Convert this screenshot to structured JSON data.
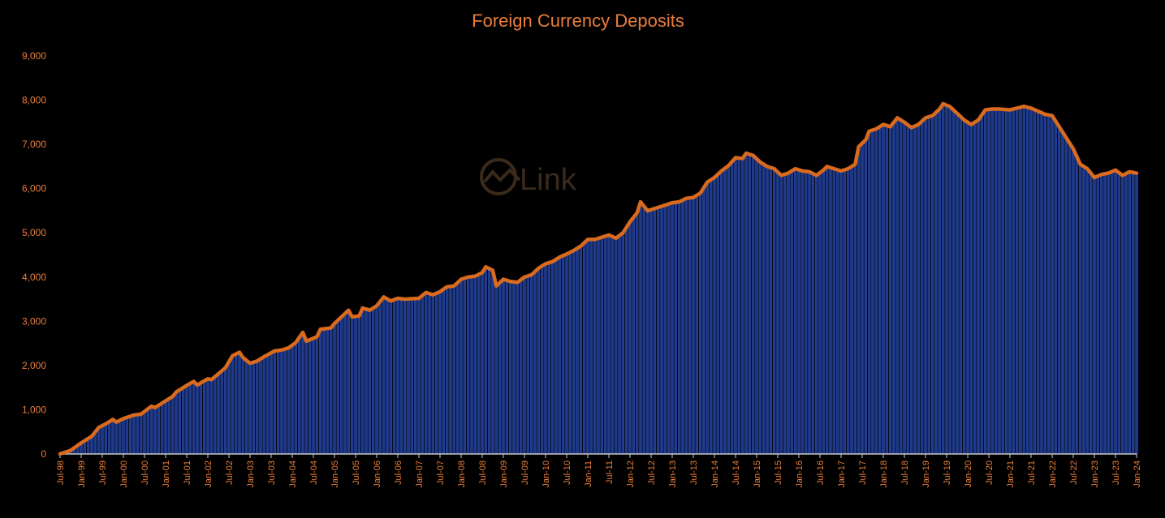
{
  "chart_data": {
    "type": "bar",
    "title": "Foreign Currency Deposits",
    "xlabel": "",
    "ylabel": "",
    "ylim": [
      0,
      9000
    ],
    "yticks": [
      0,
      1000,
      2000,
      3000,
      4000,
      5000,
      6000,
      7000,
      8000,
      9000
    ],
    "ytick_labels": [
      "0",
      "1,000",
      "2,000",
      "3,000",
      "4,000",
      "5,000",
      "6,000",
      "7,000",
      "8,000",
      "9,000"
    ],
    "x_start": "1998-07",
    "x_end": "2024-01",
    "x_tick_labels": [
      "Jul-98",
      "Jan-99",
      "Jul-99",
      "Jan-00",
      "Jul-00",
      "Jan-01",
      "Jul-01",
      "Jan-02",
      "Jul-02",
      "Jan-03",
      "Jul-03",
      "Jan-04",
      "Jul-04",
      "Jan-05",
      "Jul-05",
      "Jan-06",
      "Jul-06",
      "Jan-07",
      "Jul-07",
      "Jan-08",
      "Jul-08",
      "Jan-09",
      "Jul-09",
      "Jan-10",
      "Jul-10",
      "Jan-11",
      "Jul-11",
      "Jan-12",
      "Jul-12",
      "Jan-13",
      "Jul-13",
      "Jan-14",
      "Jul-14",
      "Jan-15",
      "Jul-15",
      "Jan-16",
      "Jul-16",
      "Jan-17",
      "Jul-17",
      "Jan-18",
      "Jul-18",
      "Jan-19",
      "Jul-19",
      "Jan-20",
      "Jul-20",
      "Jan-21",
      "Jul-21",
      "Jan-22",
      "Jul-22",
      "Jan-23",
      "Jul-23",
      "Jan-24"
    ],
    "x_tick_values": [
      "1998-07",
      "1999-01",
      "1999-07",
      "2000-01",
      "2000-07",
      "2001-01",
      "2001-07",
      "2002-01",
      "2002-07",
      "2003-01",
      "2003-07",
      "2004-01",
      "2004-07",
      "2005-01",
      "2005-07",
      "2006-01",
      "2006-07",
      "2007-01",
      "2007-07",
      "2008-01",
      "2008-07",
      "2009-01",
      "2009-07",
      "2010-01",
      "2010-07",
      "2011-01",
      "2011-07",
      "2012-01",
      "2012-07",
      "2013-01",
      "2013-07",
      "2014-01",
      "2014-07",
      "2015-01",
      "2015-07",
      "2016-01",
      "2016-07",
      "2017-01",
      "2017-07",
      "2018-01",
      "2018-07",
      "2019-01",
      "2019-07",
      "2020-01",
      "2020-07",
      "2021-01",
      "2021-07",
      "2022-01",
      "2022-07",
      "2023-01",
      "2023-07",
      "2024-01"
    ],
    "series_points": [
      [
        "1998-07",
        0
      ],
      [
        "1998-10",
        80
      ],
      [
        "1999-01",
        250
      ],
      [
        "1999-04",
        400
      ],
      [
        "1999-06",
        600
      ],
      [
        "1999-08",
        680
      ],
      [
        "1999-10",
        780
      ],
      [
        "1999-11",
        720
      ],
      [
        "2000-01",
        800
      ],
      [
        "2000-04",
        880
      ],
      [
        "2000-06",
        900
      ],
      [
        "2000-09",
        1080
      ],
      [
        "2000-10",
        1050
      ],
      [
        "2001-01",
        1200
      ],
      [
        "2001-03",
        1300
      ],
      [
        "2001-04",
        1400
      ],
      [
        "2001-07",
        1550
      ],
      [
        "2001-09",
        1640
      ],
      [
        "2001-10",
        1560
      ],
      [
        "2002-01",
        1700
      ],
      [
        "2002-02",
        1680
      ],
      [
        "2002-05",
        1880
      ],
      [
        "2002-06",
        1950
      ],
      [
        "2002-08",
        2220
      ],
      [
        "2002-10",
        2300
      ],
      [
        "2002-11",
        2180
      ],
      [
        "2003-01",
        2050
      ],
      [
        "2003-03",
        2100
      ],
      [
        "2003-05",
        2200
      ],
      [
        "2003-08",
        2330
      ],
      [
        "2003-10",
        2350
      ],
      [
        "2003-12",
        2400
      ],
      [
        "2004-02",
        2520
      ],
      [
        "2004-04",
        2750
      ],
      [
        "2004-05",
        2550
      ],
      [
        "2004-08",
        2650
      ],
      [
        "2004-09",
        2820
      ],
      [
        "2004-12",
        2850
      ],
      [
        "2005-01",
        2950
      ],
      [
        "2005-03",
        3100
      ],
      [
        "2005-05",
        3250
      ],
      [
        "2005-06",
        3100
      ],
      [
        "2005-08",
        3120
      ],
      [
        "2005-09",
        3300
      ],
      [
        "2005-11",
        3250
      ],
      [
        "2006-01",
        3350
      ],
      [
        "2006-03",
        3550
      ],
      [
        "2006-05",
        3460
      ],
      [
        "2006-07",
        3520
      ],
      [
        "2006-09",
        3500
      ],
      [
        "2007-01",
        3520
      ],
      [
        "2007-03",
        3650
      ],
      [
        "2007-05",
        3600
      ],
      [
        "2007-07",
        3670
      ],
      [
        "2007-09",
        3780
      ],
      [
        "2007-11",
        3800
      ],
      [
        "2008-01",
        3950
      ],
      [
        "2008-03",
        4000
      ],
      [
        "2008-05",
        4020
      ],
      [
        "2008-07",
        4100
      ],
      [
        "2008-08",
        4230
      ],
      [
        "2008-10",
        4150
      ],
      [
        "2008-11",
        3800
      ],
      [
        "2009-01",
        3950
      ],
      [
        "2009-03",
        3900
      ],
      [
        "2009-05",
        3880
      ],
      [
        "2009-07",
        4000
      ],
      [
        "2009-09",
        4050
      ],
      [
        "2009-11",
        4200
      ],
      [
        "2010-01",
        4300
      ],
      [
        "2010-03",
        4350
      ],
      [
        "2010-05",
        4450
      ],
      [
        "2010-07",
        4520
      ],
      [
        "2010-09",
        4600
      ],
      [
        "2010-11",
        4700
      ],
      [
        "2011-01",
        4850
      ],
      [
        "2011-03",
        4850
      ],
      [
        "2011-05",
        4900
      ],
      [
        "2011-07",
        4950
      ],
      [
        "2011-09",
        4880
      ],
      [
        "2011-11",
        5000
      ],
      [
        "2012-01",
        5250
      ],
      [
        "2012-03",
        5450
      ],
      [
        "2012-04",
        5700
      ],
      [
        "2012-06",
        5500
      ],
      [
        "2012-08",
        5550
      ],
      [
        "2012-10",
        5600
      ],
      [
        "2013-01",
        5680
      ],
      [
        "2013-03",
        5700
      ],
      [
        "2013-05",
        5780
      ],
      [
        "2013-07",
        5800
      ],
      [
        "2013-09",
        5900
      ],
      [
        "2013-11",
        6150
      ],
      [
        "2014-01",
        6250
      ],
      [
        "2014-03",
        6400
      ],
      [
        "2014-05",
        6520
      ],
      [
        "2014-07",
        6700
      ],
      [
        "2014-09",
        6680
      ],
      [
        "2014-10",
        6800
      ],
      [
        "2014-12",
        6750
      ],
      [
        "2015-02",
        6600
      ],
      [
        "2015-04",
        6500
      ],
      [
        "2015-06",
        6450
      ],
      [
        "2015-08",
        6300
      ],
      [
        "2015-10",
        6350
      ],
      [
        "2015-12",
        6450
      ],
      [
        "2016-02",
        6400
      ],
      [
        "2016-04",
        6380
      ],
      [
        "2016-06",
        6300
      ],
      [
        "2016-08",
        6420
      ],
      [
        "2016-09",
        6500
      ],
      [
        "2016-11",
        6450
      ],
      [
        "2017-01",
        6400
      ],
      [
        "2017-03",
        6450
      ],
      [
        "2017-05",
        6550
      ],
      [
        "2017-06",
        6950
      ],
      [
        "2017-08",
        7100
      ],
      [
        "2017-09",
        7300
      ],
      [
        "2017-11",
        7350
      ],
      [
        "2018-01",
        7450
      ],
      [
        "2018-03",
        7400
      ],
      [
        "2018-05",
        7600
      ],
      [
        "2018-07",
        7500
      ],
      [
        "2018-09",
        7380
      ],
      [
        "2018-11",
        7450
      ],
      [
        "2019-01",
        7600
      ],
      [
        "2019-03",
        7650
      ],
      [
        "2019-05",
        7800
      ],
      [
        "2019-06",
        7920
      ],
      [
        "2019-08",
        7850
      ],
      [
        "2019-10",
        7700
      ],
      [
        "2019-12",
        7550
      ],
      [
        "2020-02",
        7450
      ],
      [
        "2020-04",
        7550
      ],
      [
        "2020-06",
        7780
      ],
      [
        "2020-08",
        7800
      ],
      [
        "2020-10",
        7800
      ],
      [
        "2021-01",
        7780
      ],
      [
        "2021-03",
        7820
      ],
      [
        "2021-05",
        7860
      ],
      [
        "2021-07",
        7820
      ],
      [
        "2021-09",
        7750
      ],
      [
        "2021-11",
        7680
      ],
      [
        "2022-01",
        7650
      ],
      [
        "2022-03",
        7400
      ],
      [
        "2022-05",
        7150
      ],
      [
        "2022-07",
        6900
      ],
      [
        "2022-09",
        6550
      ],
      [
        "2022-11",
        6450
      ],
      [
        "2023-01",
        6250
      ],
      [
        "2023-03",
        6320
      ],
      [
        "2023-05",
        6350
      ],
      [
        "2023-07",
        6420
      ],
      [
        "2023-09",
        6300
      ],
      [
        "2023-11",
        6380
      ],
      [
        "2024-01",
        6350
      ]
    ],
    "watermark": "Link",
    "colors": {
      "background": "#000000",
      "bar_fill": "#1f3a8a",
      "bar_edge": "#2c4fb8",
      "line": "#d96a1e",
      "text": "#e87d3a",
      "axis": "#c9c9c9"
    }
  }
}
